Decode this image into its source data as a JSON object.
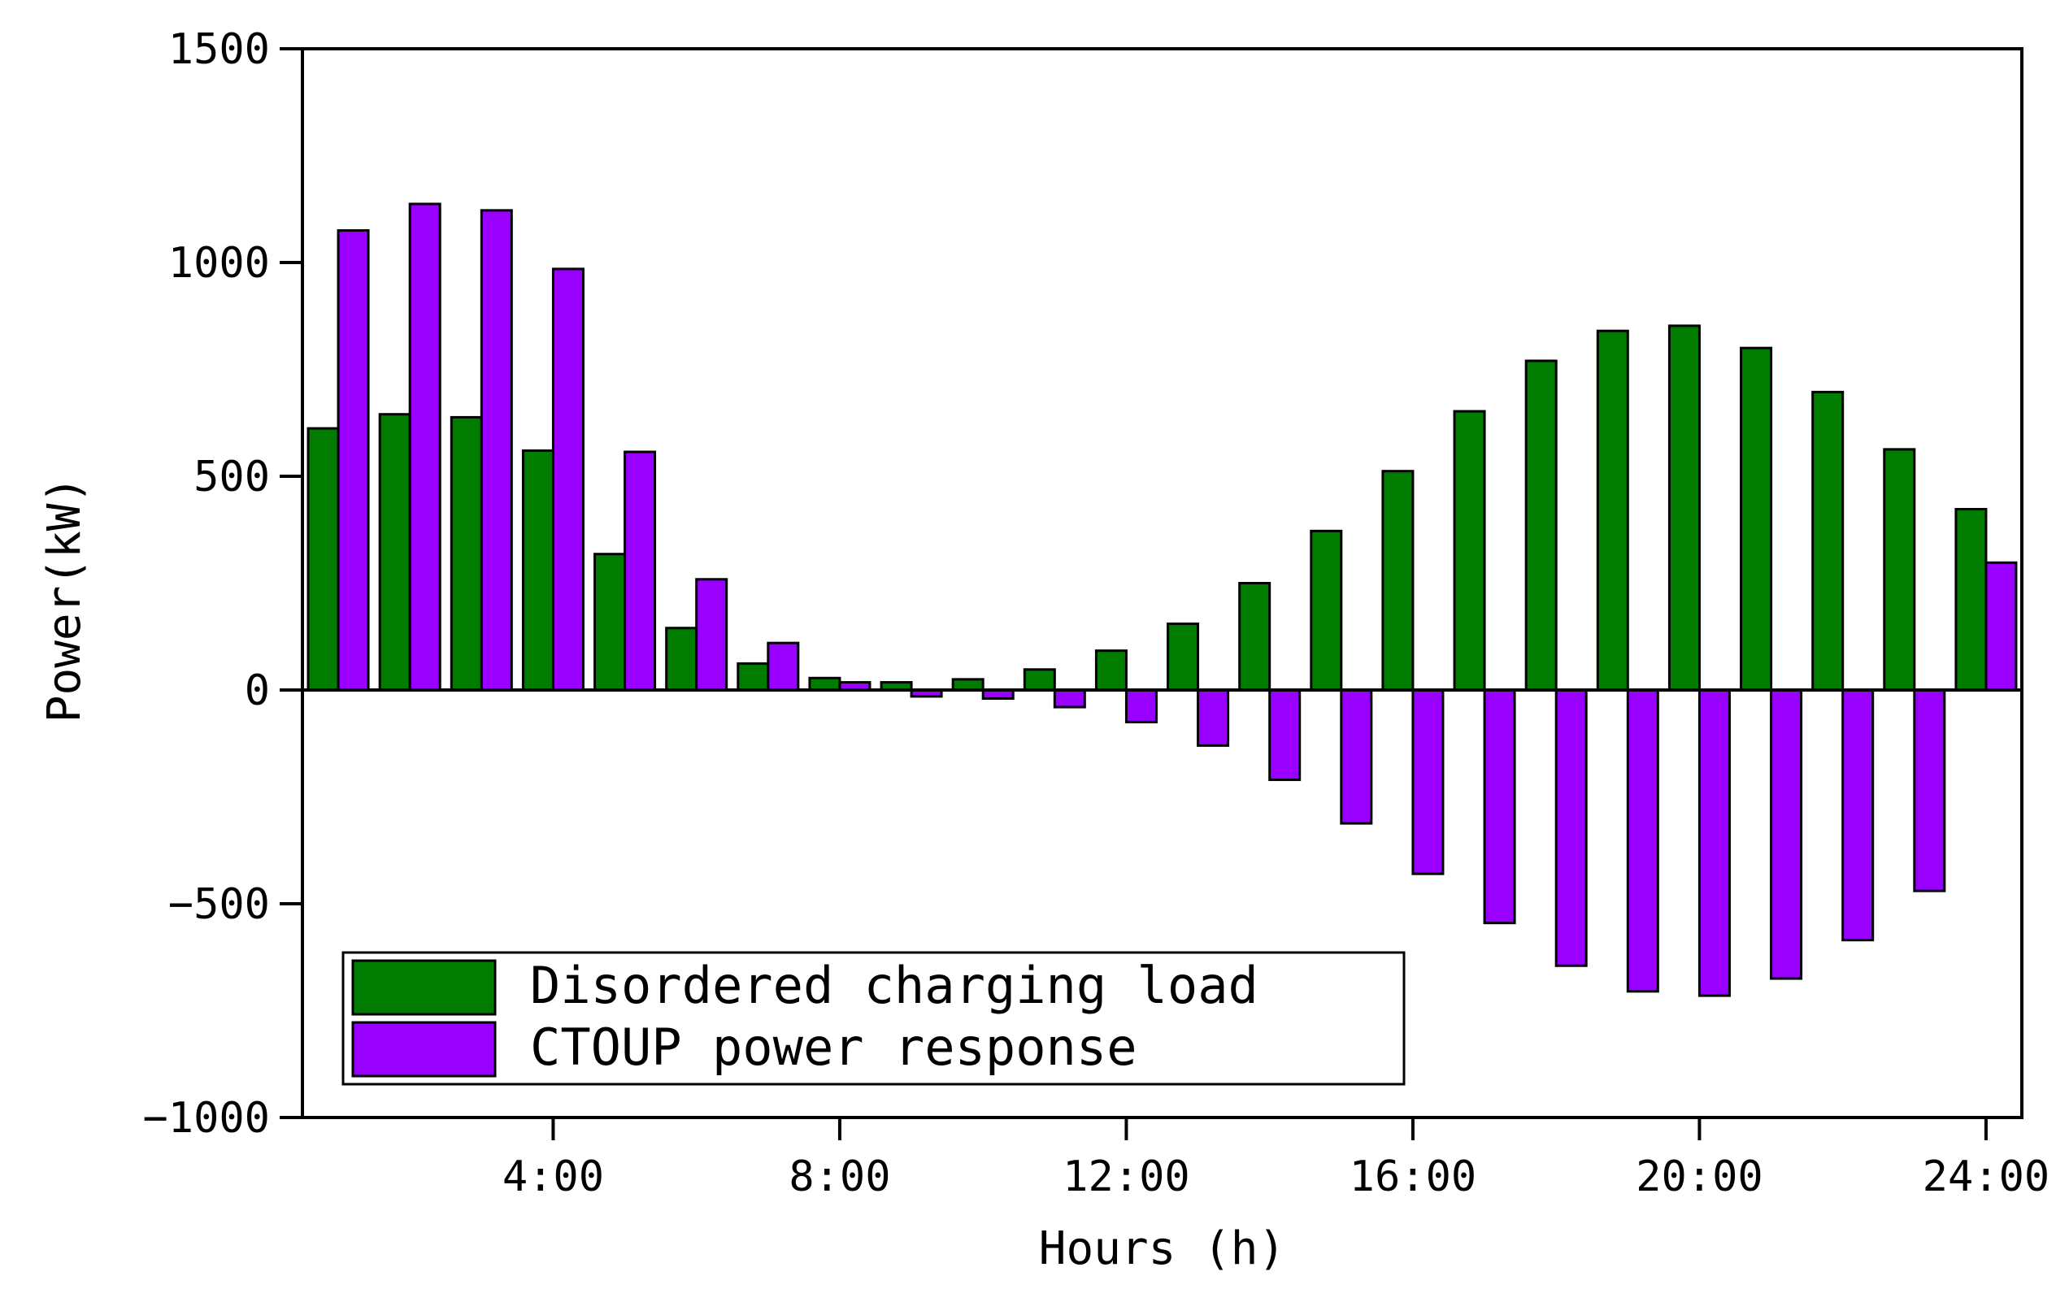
{
  "chart_data": {
    "type": "bar",
    "title": "",
    "xlabel": "Hours (h)",
    "ylabel": "Power(kW)",
    "ylim": [
      -1000,
      1500
    ],
    "yticks": [
      -1000,
      -500,
      0,
      500,
      1000,
      1500
    ],
    "xlim": [
      0.5,
      24.5
    ],
    "xticks": [
      4,
      8,
      12,
      16,
      20,
      24
    ],
    "xtick_labels": [
      "4:00",
      "8:00",
      "12:00",
      "16:00",
      "20:00",
      "24:00"
    ],
    "categories": [
      1,
      2,
      3,
      4,
      5,
      6,
      7,
      8,
      9,
      10,
      11,
      12,
      13,
      14,
      15,
      16,
      17,
      18,
      19,
      20,
      21,
      22,
      23,
      24
    ],
    "series": [
      {
        "name": "Disordered charging load",
        "color": "#007d00",
        "values": [
          612,
          645,
          638,
          560,
          318,
          145,
          62,
          28,
          18,
          25,
          48,
          92,
          155,
          250,
          372,
          512,
          652,
          770,
          840,
          852,
          800,
          697,
          563,
          423
        ]
      },
      {
        "name": "CTOUP power response",
        "color": "#9900ff",
        "values": [
          1075,
          1137,
          1122,
          985,
          557,
          259,
          110,
          18,
          -15,
          -20,
          -40,
          -75,
          -130,
          -210,
          -312,
          -430,
          -545,
          -645,
          -705,
          -715,
          -675,
          -585,
          -470,
          298
        ]
      }
    ],
    "legend": "bottom-left",
    "grid": false
  }
}
